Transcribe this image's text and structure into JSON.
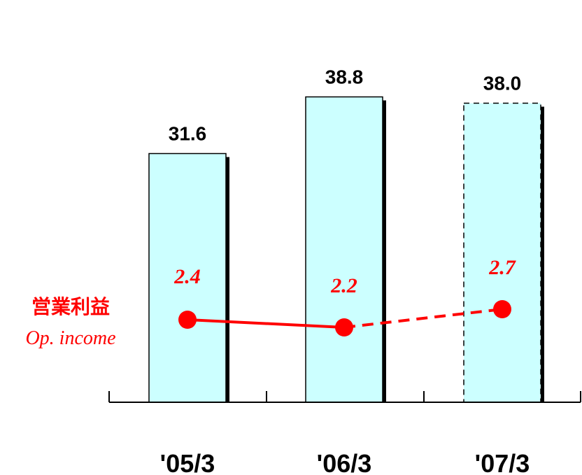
{
  "chart_data": {
    "type": "bar",
    "categories": [
      "'05/3",
      "'06/3",
      "'07/3"
    ],
    "values": [
      31.6,
      38.8,
      38.0
    ],
    "value_labels": [
      "31.6",
      "38.8",
      "38.0"
    ],
    "forecast_index": 2,
    "ylim": [
      0,
      45
    ],
    "grid": false,
    "line_series": {
      "name_ja": "営業利益",
      "name_en": "Op. income",
      "values": [
        2.4,
        2.2,
        2.7
      ],
      "value_labels": [
        "2.4",
        "2.2",
        "2.7"
      ],
      "forecast_index": 2
    }
  },
  "colors": {
    "bar_fill": "#ccffff",
    "bar_stroke": "#000000",
    "bar_shadow": "#000000",
    "line": "#ff0000",
    "axis": "#000000"
  }
}
